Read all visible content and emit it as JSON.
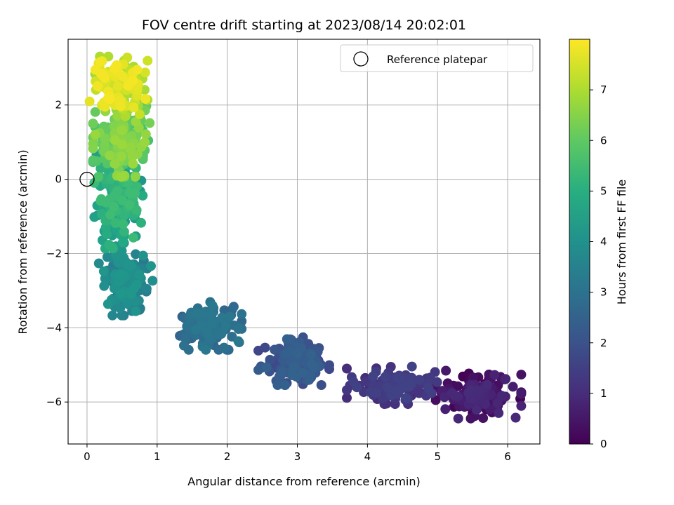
{
  "chart_data": {
    "type": "scatter",
    "title": "FOV centre drift starting at 2023/08/14 20:02:01",
    "xlabel": "Angular distance from reference (arcmin)",
    "ylabel": "Rotation from reference (arcmin)",
    "xlim": [
      -0.27,
      6.46
    ],
    "ylim": [
      -7.13,
      3.77
    ],
    "xticks": [
      0,
      1,
      2,
      3,
      4,
      5,
      6
    ],
    "yticks": [
      -6,
      -4,
      -2,
      0,
      2
    ],
    "grid": true,
    "legend": {
      "location": "top-right",
      "entries": [
        "Reference platepar"
      ]
    },
    "reference_point": {
      "x": 0,
      "y": 0,
      "marker": "open-circle"
    },
    "colorbar": {
      "label": "Hours from first FF file",
      "min": 0,
      "max": 8,
      "ticks": [
        0,
        1,
        2,
        3,
        4,
        5,
        6,
        7
      ],
      "colormap": "viridis"
    },
    "clusters": [
      {
        "x": 5.55,
        "y": -5.8,
        "sx": 0.28,
        "sy": 0.28,
        "n": 150,
        "t0": 0.0,
        "t1": 1.0
      },
      {
        "x": 4.35,
        "y": -5.55,
        "sx": 0.28,
        "sy": 0.22,
        "n": 110,
        "t0": 1.0,
        "t1": 1.6
      },
      {
        "x": 2.95,
        "y": -4.9,
        "sx": 0.22,
        "sy": 0.28,
        "n": 170,
        "t0": 1.6,
        "t1": 2.5
      },
      {
        "x": 1.7,
        "y": -3.95,
        "sx": 0.22,
        "sy": 0.28,
        "n": 150,
        "t0": 2.5,
        "t1": 3.2
      },
      {
        "x": 0.55,
        "y": -2.75,
        "sx": 0.17,
        "sy": 0.4,
        "n": 150,
        "t0": 3.2,
        "t1": 4.2
      },
      {
        "x": 0.45,
        "y": -0.6,
        "sx": 0.15,
        "sy": 0.55,
        "n": 180,
        "t0": 4.2,
        "t1": 5.5
      },
      {
        "x": 0.5,
        "y": 1.1,
        "sx": 0.18,
        "sy": 0.45,
        "n": 180,
        "t0": 5.5,
        "t1": 6.8
      },
      {
        "x": 0.45,
        "y": 2.5,
        "sx": 0.18,
        "sy": 0.35,
        "n": 130,
        "t0": 6.8,
        "t1": 7.95
      }
    ]
  }
}
